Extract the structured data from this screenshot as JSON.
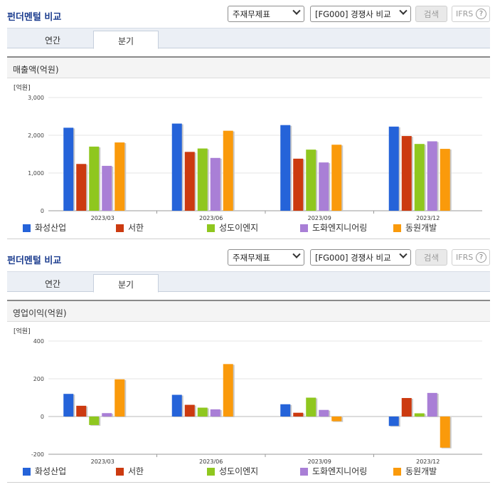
{
  "panels": [
    {
      "title": "펀더멘털 비교",
      "select_statement": "주재무제표",
      "select_compare": "[FG000] 경쟁사 비교",
      "search_label": "검색",
      "ifrs_label": "IFRS",
      "ifrs_help": "?",
      "tabs": [
        "연간",
        "분기"
      ],
      "active_tab": "분기",
      "metric_label": "매출액(억원)",
      "legend": [
        "화성산업",
        "서한",
        "성도이엔지",
        "도화엔지니어링",
        "동원개발"
      ]
    },
    {
      "title": "펀더멘털 비교",
      "select_statement": "주재무제표",
      "select_compare": "[FG000] 경쟁사 비교",
      "search_label": "검색",
      "ifrs_label": "IFRS",
      "ifrs_help": "?",
      "tabs": [
        "연간",
        "분기"
      ],
      "active_tab": "분기",
      "metric_label": "영업이익(억원)",
      "legend": [
        "화성산업",
        "서한",
        "성도이엔지",
        "도화엔지니어링",
        "동원개발"
      ]
    }
  ],
  "colors": [
    "#2563d9",
    "#cc3a10",
    "#8fc71f",
    "#a97fd6",
    "#fa9a0b"
  ],
  "chart_data": [
    {
      "type": "bar",
      "unit_label": "[억원]",
      "categories": [
        "2023/03",
        "2023/06",
        "2023/09",
        "2023/12"
      ],
      "ylim": [
        0,
        3000
      ],
      "yticks": [
        0,
        1000,
        2000,
        3000
      ],
      "ytick_labels": [
        "0",
        "1,000",
        "2,000",
        "3,000"
      ],
      "series": [
        {
          "name": "화성산업",
          "values": [
            2200,
            2310,
            2270,
            2230
          ]
        },
        {
          "name": "서한",
          "values": [
            1240,
            1560,
            1380,
            1980
          ]
        },
        {
          "name": "성도이엔지",
          "values": [
            1700,
            1650,
            1620,
            1770
          ]
        },
        {
          "name": "도화엔지니어링",
          "values": [
            1190,
            1400,
            1280,
            1840
          ]
        },
        {
          "name": "동원개발",
          "values": [
            1810,
            2120,
            1750,
            1640
          ]
        }
      ]
    },
    {
      "type": "bar",
      "unit_label": "[억원]",
      "categories": [
        "2023/03",
        "2023/06",
        "2023/09",
        "2023/12"
      ],
      "ylim": [
        -200,
        400
      ],
      "yticks": [
        -200,
        0,
        200,
        400
      ],
      "ytick_labels": [
        "-200",
        "0",
        "200",
        "400"
      ],
      "series": [
        {
          "name": "화성산업",
          "values": [
            120,
            115,
            65,
            -50
          ]
        },
        {
          "name": "서한",
          "values": [
            57,
            62,
            20,
            98
          ]
        },
        {
          "name": "성도이엔지",
          "values": [
            -45,
            47,
            100,
            17
          ]
        },
        {
          "name": "도화엔지니어링",
          "values": [
            18,
            38,
            35,
            125
          ]
        },
        {
          "name": "동원개발",
          "values": [
            197,
            278,
            -25,
            -165
          ]
        }
      ]
    }
  ]
}
